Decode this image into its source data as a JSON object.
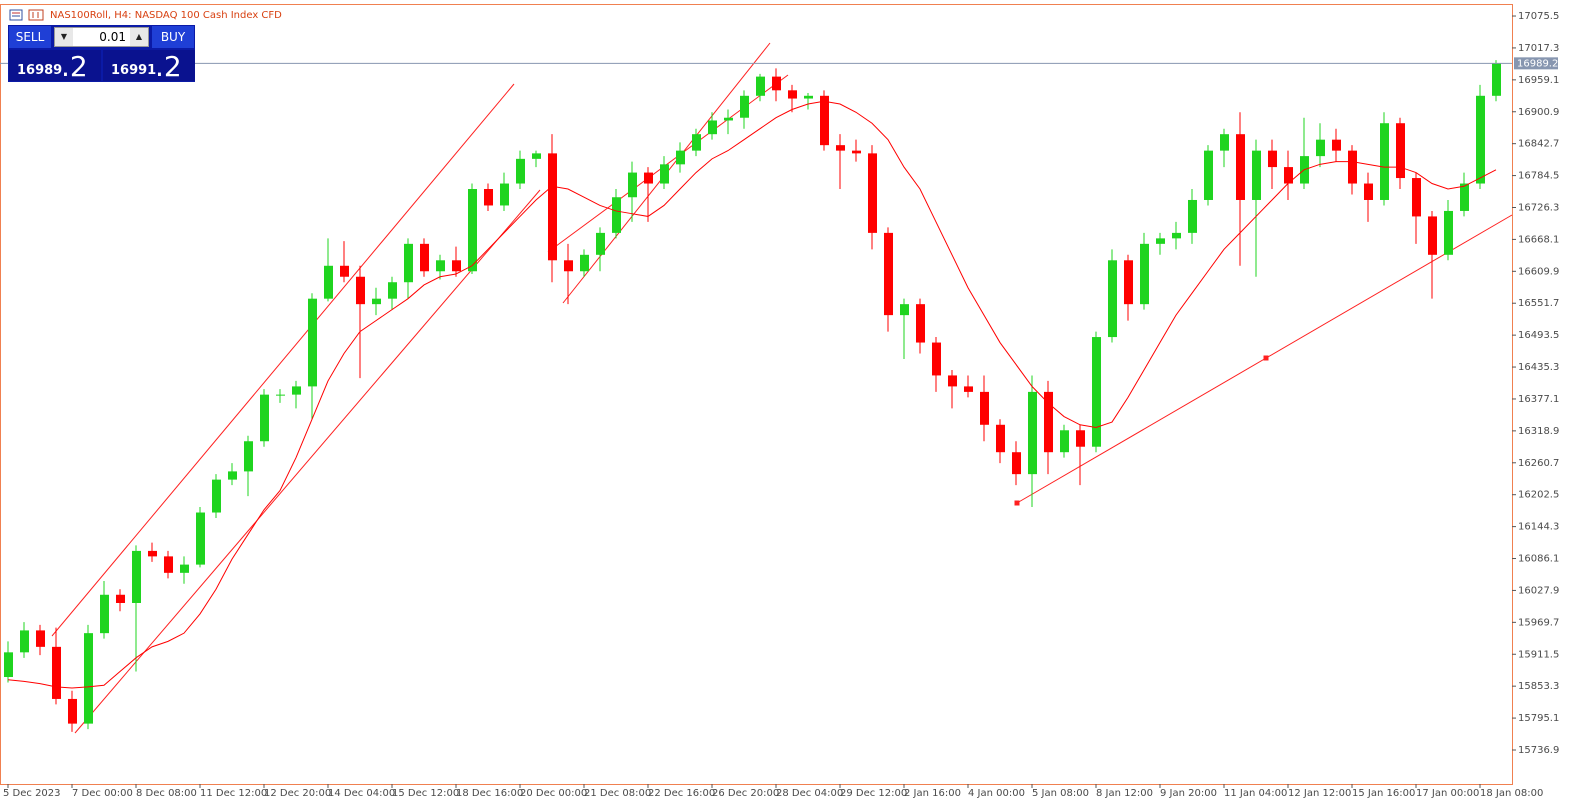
{
  "chart_data": {
    "type": "candlestick",
    "title": "NAS100Roll, H4:  NASDAQ 100 Cash Index CFD",
    "categories": [
      "5 Dec 2023",
      null,
      null,
      null,
      "7 Dec 00:00",
      null,
      null,
      null,
      "8 Dec 08:00",
      null,
      null,
      null,
      "11 Dec 12:00",
      null,
      null,
      null,
      "12 Dec 20:00",
      null,
      null,
      null,
      "14 Dec 04:00",
      null,
      null,
      null,
      "15 Dec 12:00",
      null,
      null,
      null,
      "18 Dec 16:00",
      null,
      null,
      null,
      "20 Dec 00:00",
      null,
      null,
      null,
      "21 Dec 08:00",
      null,
      null,
      null,
      "22 Dec 16:00",
      null,
      null,
      null,
      "26 Dec 20:00",
      null,
      null,
      null,
      "28 Dec 04:00",
      null,
      null,
      null,
      "29 Dec 12:00",
      null,
      null,
      null,
      "2 Jan 16:00",
      null,
      null,
      null,
      "4 Jan 00:00",
      null,
      null,
      null,
      "5 Jan 08:00",
      null,
      null,
      null,
      "8 Jan 12:00",
      null,
      null,
      null,
      "9 Jan 20:00",
      null,
      null,
      null,
      "11 Jan 04:00",
      null,
      null,
      null,
      "12 Jan 12:00",
      null,
      null,
      null,
      "15 Jan 16:00",
      null,
      null,
      null,
      "17 Jan 00:00",
      null,
      null,
      null,
      "18 Jan 08:00",
      null
    ],
    "open": [
      15870,
      15915,
      15955,
      15925,
      15830,
      15785,
      15950,
      16020,
      16005,
      16100,
      16090,
      16060,
      16075,
      16170,
      16230,
      16245,
      16300,
      16385,
      16385,
      16400,
      16560,
      16620,
      16600,
      16550,
      16560,
      16590,
      16660,
      16610,
      16630,
      16610,
      16760,
      16730,
      16770,
      16815,
      16825,
      16630,
      16610,
      16640,
      16680,
      16745,
      16790,
      16770,
      16805,
      16830,
      16860,
      16885,
      16890,
      16930,
      16965,
      16940,
      16925,
      16930,
      16840,
      16830,
      16825,
      16680,
      16530,
      16550,
      16480,
      16420,
      16400,
      16390,
      16330,
      16280,
      16240,
      16390,
      16280,
      16320,
      16290,
      16490,
      16630,
      16550,
      16660,
      16670,
      16680,
      16740,
      16830,
      16860,
      16740,
      16830,
      16800,
      16770,
      16820,
      16850,
      16830,
      16770,
      16740,
      16880,
      16780,
      16710,
      16640,
      16720,
      16770,
      16930
    ],
    "high": [
      15935,
      15970,
      15965,
      15960,
      15845,
      15965,
      16045,
      16030,
      16110,
      16115,
      16100,
      16090,
      16180,
      16240,
      16260,
      16310,
      16395,
      16395,
      16410,
      16570,
      16670,
      16665,
      16620,
      16580,
      16600,
      16670,
      16670,
      16640,
      16655,
      16770,
      16770,
      16790,
      16830,
      16830,
      16860,
      16660,
      16650,
      16690,
      16760,
      16810,
      16800,
      16820,
      16845,
      16870,
      16900,
      16905,
      16940,
      16970,
      16980,
      16950,
      16935,
      16940,
      16860,
      16850,
      16840,
      16690,
      16560,
      16560,
      16490,
      16430,
      16420,
      16420,
      16340,
      16300,
      16420,
      16410,
      16330,
      16330,
      16500,
      16650,
      16640,
      16680,
      16680,
      16700,
      16760,
      16840,
      16870,
      16900,
      16850,
      16850,
      16830,
      16890,
      16880,
      16870,
      16840,
      16790,
      16900,
      16890,
      16790,
      16720,
      16740,
      16790,
      16950,
      16995
    ],
    "low": [
      15860,
      15905,
      15910,
      15820,
      15770,
      15775,
      15940,
      15990,
      15880,
      16080,
      16050,
      16040,
      16070,
      16160,
      16220,
      16200,
      16290,
      16370,
      16360,
      16340,
      16555,
      16590,
      16415,
      16530,
      16540,
      16560,
      16600,
      16595,
      16600,
      16605,
      16720,
      16720,
      16760,
      16800,
      16590,
      16550,
      16600,
      16610,
      16670,
      16700,
      16700,
      16760,
      16790,
      16820,
      16850,
      16860,
      16870,
      16920,
      16920,
      16900,
      16905,
      16830,
      16760,
      16810,
      16650,
      16500,
      16450,
      16460,
      16390,
      16360,
      16380,
      16300,
      16260,
      16220,
      16180,
      16240,
      16270,
      16220,
      16280,
      16480,
      16520,
      16540,
      16640,
      16650,
      16660,
      16730,
      16800,
      16620,
      16600,
      16760,
      16740,
      16760,
      16800,
      16810,
      16750,
      16700,
      16730,
      16760,
      16660,
      16560,
      16630,
      16710,
      16760,
      16920
    ],
    "close": [
      15915,
      15955,
      15925,
      15830,
      15785,
      15950,
      16020,
      16005,
      16100,
      16090,
      16060,
      16075,
      16170,
      16230,
      16245,
      16300,
      16385,
      16385,
      16400,
      16560,
      16620,
      16600,
      16550,
      16560,
      16590,
      16660,
      16610,
      16630,
      16610,
      16760,
      16730,
      16770,
      16815,
      16825,
      16630,
      16610,
      16640,
      16680,
      16745,
      16790,
      16770,
      16805,
      16830,
      16860,
      16885,
      16890,
      16930,
      16965,
      16940,
      16925,
      16930,
      16840,
      16830,
      16825,
      16680,
      16530,
      16550,
      16480,
      16420,
      16400,
      16390,
      16330,
      16280,
      16240,
      16390,
      16280,
      16320,
      16290,
      16490,
      16630,
      16550,
      16660,
      16670,
      16680,
      16740,
      16830,
      16860,
      16740,
      16830,
      16800,
      16770,
      16820,
      16850,
      16830,
      16770,
      16740,
      16880,
      16780,
      16710,
      16640,
      16720,
      16770,
      16930,
      16989.2
    ],
    "ma": {
      "color": "#ff0000",
      "values": [
        15865,
        15862,
        15858,
        15852,
        15850,
        15852,
        15855,
        15880,
        15905,
        15925,
        15935,
        15950,
        15985,
        16030,
        16085,
        16130,
        16175,
        16210,
        16270,
        16340,
        16410,
        16460,
        16500,
        16520,
        16540,
        16560,
        16585,
        16600,
        16605,
        16620,
        16650,
        16680,
        16710,
        16740,
        16765,
        16760,
        16745,
        16730,
        16720,
        16715,
        16710,
        16730,
        16760,
        16790,
        16815,
        16830,
        16850,
        16870,
        16890,
        16905,
        16915,
        16920,
        16915,
        16900,
        16880,
        16850,
        16800,
        16760,
        16700,
        16640,
        16580,
        16530,
        16480,
        16440,
        16400,
        16370,
        16345,
        16330,
        16325,
        16335,
        16380,
        16430,
        16480,
        16530,
        16570,
        16610,
        16650,
        16680,
        16710,
        16740,
        16770,
        16795,
        16805,
        16810,
        16810,
        16805,
        16800,
        16800,
        16790,
        16770,
        16760,
        16765,
        16780,
        16795
      ]
    },
    "colors": {
      "up": "#1fd41f",
      "down": "#ff0000"
    },
    "current_price": 16989.2,
    "ylim": [
      15676.7,
      17095.6
    ],
    "yticks": [
      17075.5,
      17017.3,
      16959.1,
      16900.9,
      16842.7,
      16784.5,
      16726.3,
      16668.1,
      16609.9,
      16551.7,
      16493.5,
      16435.3,
      16377.1,
      16318.9,
      16260.7,
      16202.5,
      16144.3,
      16086.1,
      16027.9,
      15969.7,
      15911.5,
      15853.3,
      15795.1,
      15736.9
    ],
    "grid": false
  },
  "trade_panel": {
    "sell": "SELL",
    "buy": "BUY",
    "volume": "0.01",
    "bid_main": "16989",
    "bid_frac": ".2",
    "ask_main": "16991",
    "ask_frac": ".2"
  }
}
